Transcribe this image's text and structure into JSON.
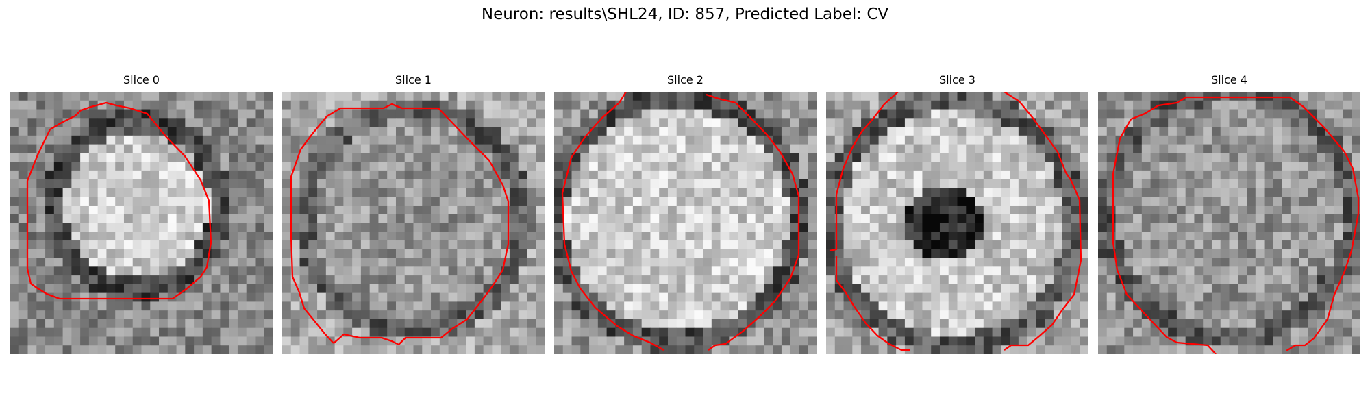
{
  "figure": {
    "title": "Neuron: results\\SHL24, ID: 857, Predicted Label: CV"
  },
  "style": {
    "contour_color": "#ff0000",
    "colormap": "gray"
  },
  "panels": [
    {
      "title": "Slice 0"
    },
    {
      "title": "Slice 1"
    },
    {
      "title": "Slice 2"
    },
    {
      "title": "Slice 3"
    },
    {
      "title": "Slice 4"
    }
  ]
}
